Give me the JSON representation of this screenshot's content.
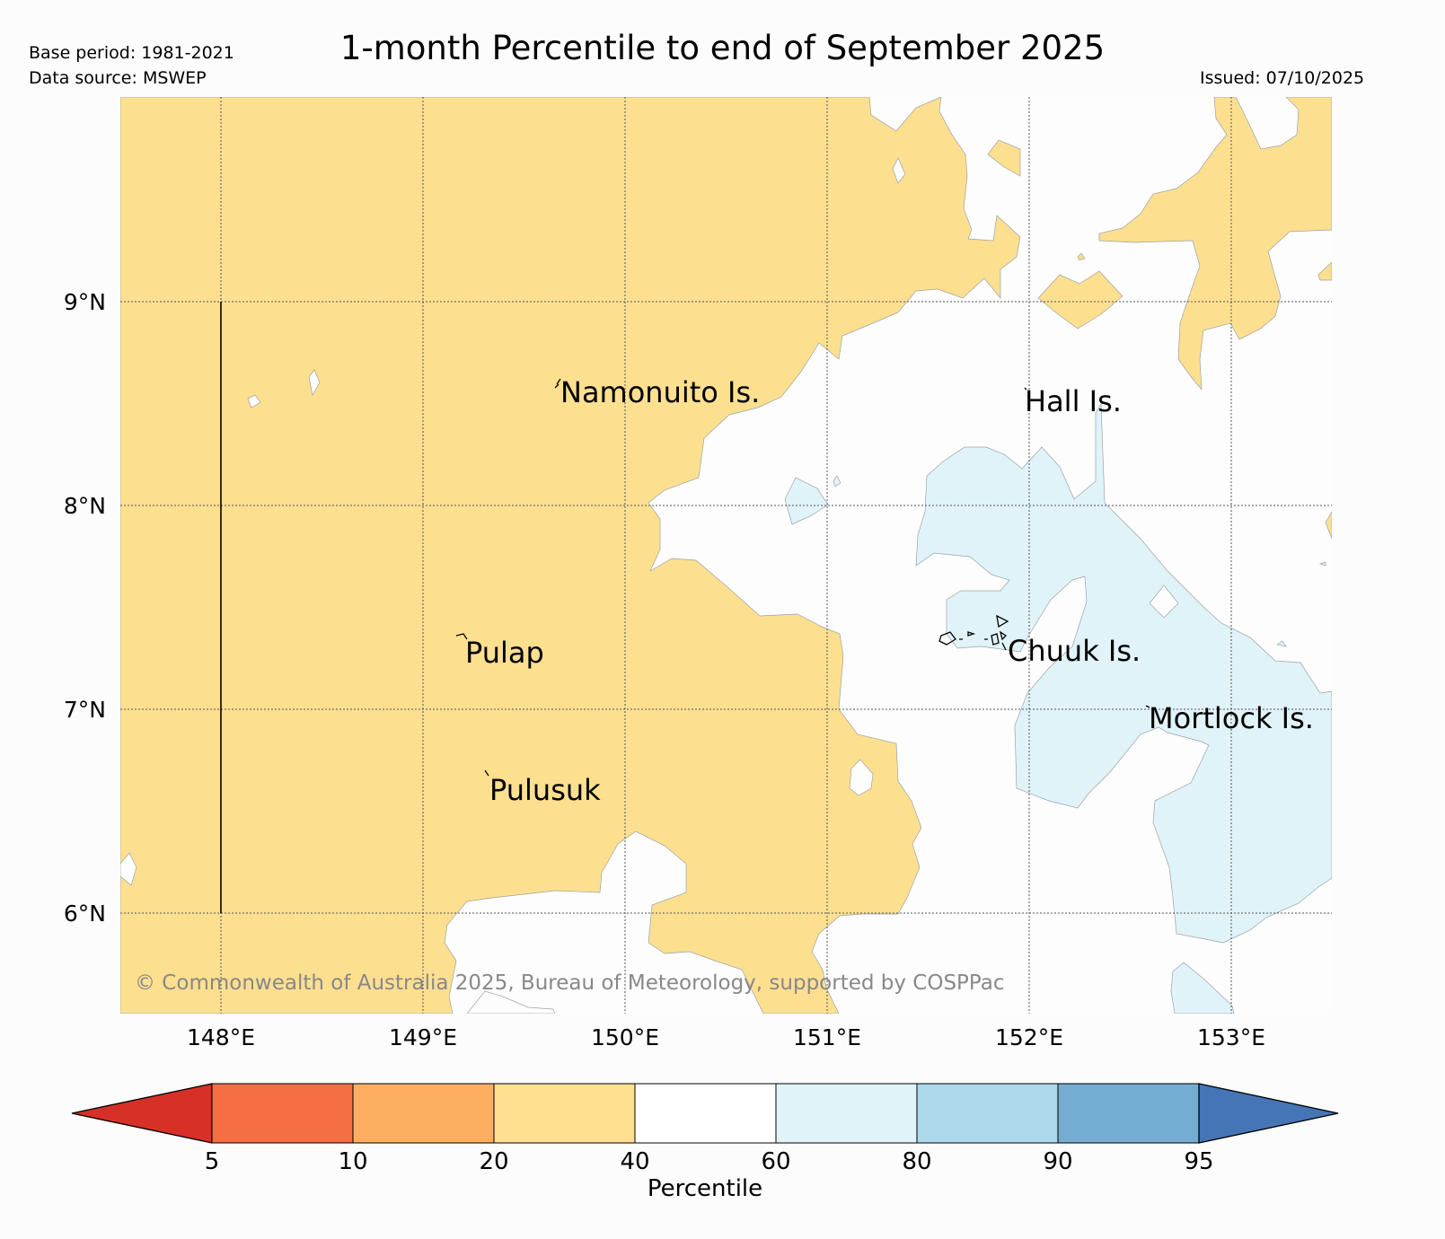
{
  "header": {
    "title": "1-month Percentile to end of September 2025",
    "base_period": "Base period: 1981-2021",
    "data_source": "Data source: MSWEP",
    "issued": "Issued: 07/10/2025"
  },
  "map": {
    "lat_labels": [
      "9°N",
      "8°N",
      "7°N",
      "6°N"
    ],
    "lon_labels": [
      "148°E",
      "149°E",
      "150°E",
      "151°E",
      "152°E",
      "153°E"
    ],
    "places": [
      {
        "name": "Namonuito Is."
      },
      {
        "name": "Hall Is."
      },
      {
        "name": "Pulap"
      },
      {
        "name": "Chuuk Is."
      },
      {
        "name": "Mortlock Is."
      },
      {
        "name": "Pulusuk"
      }
    ],
    "copyright": "© Commonwealth of Australia 2025, Bureau of Meteorology, supported by COSPPac",
    "colors": {
      "pct_20_40": "#fddf90",
      "pct_40_60": "#fdfdfe",
      "pct_60_80": "#e0f3f8"
    }
  },
  "colorbar": {
    "label": "Percentile",
    "ticks": [
      "5",
      "10",
      "20",
      "40",
      "60",
      "80",
      "90",
      "95"
    ],
    "colors": [
      "#d73027",
      "#f46d43",
      "#fdae61",
      "#fee090",
      "#ffffff",
      "#e0f3f8",
      "#abd9e9",
      "#74add1",
      "#4575b4"
    ]
  }
}
